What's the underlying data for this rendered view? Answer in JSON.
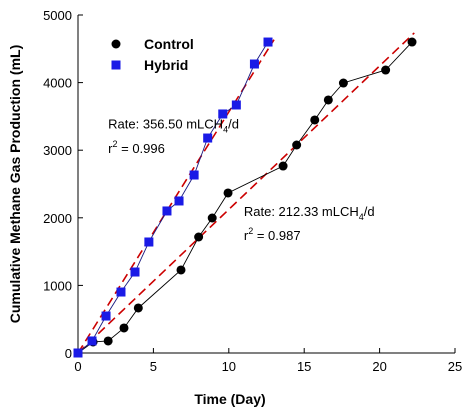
{
  "chart_data": {
    "type": "scatter",
    "x_label": "Time (Day)",
    "y_label": "Cumulative Methane Gas Production (mL)",
    "xlim": [
      0,
      25
    ],
    "xticks": [
      0,
      5,
      10,
      15,
      20,
      25
    ],
    "ylim": [
      0,
      5000
    ],
    "yticks": [
      0,
      1000,
      2000,
      3000,
      4000,
      5000
    ],
    "legend": "upper left",
    "series": [
      {
        "name": "Control",
        "color": "#000000",
        "marker": "circle",
        "line_color": "#000000",
        "x": [
          0,
          1.0,
          2.0,
          3.05,
          4.0,
          6.83,
          8.0,
          8.9,
          9.95,
          13.6,
          14.5,
          15.7,
          16.6,
          17.6,
          20.4,
          22.15
        ],
        "values": [
          0,
          163,
          178,
          370,
          666,
          1228,
          1716,
          1997,
          2367,
          2766,
          3077,
          3447,
          3743,
          3994,
          4186,
          4600
        ]
      },
      {
        "name": "Hybrid",
        "color": "#1a1ae6",
        "marker": "square",
        "line_color": "#1a1a80",
        "x": [
          0,
          0.93,
          1.86,
          2.85,
          3.78,
          4.7,
          5.9,
          6.7,
          7.7,
          8.6,
          9.6,
          10.5,
          11.7,
          12.6
        ],
        "values": [
          0,
          178,
          547,
          902,
          1198,
          1642,
          2101,
          2249,
          2633,
          3180,
          3536,
          3669,
          4275,
          4600
        ]
      }
    ],
    "trendlines": [
      {
        "color": "#cc0000",
        "x": [
          0,
          13
        ],
        "values": [
          0,
          4635
        ]
      },
      {
        "color": "#cc0000",
        "x": [
          0,
          22.3
        ],
        "values": [
          0,
          4735
        ]
      }
    ],
    "annotations": [
      {
        "text": "Rate: 356.50  mLCH",
        "sub": "4",
        "tail": "/d",
        "x": 2,
        "y": 3320
      },
      {
        "text": "r",
        "sup": "2",
        "tail": " = 0.996",
        "x": 2,
        "y": 2960
      },
      {
        "text": "Rate: 212.33  mLCH",
        "sub": "4",
        "tail": "/d",
        "x": 11,
        "y": 2030
      },
      {
        "text": "r",
        "sup": "2",
        "tail": " = 0.987",
        "x": 11,
        "y": 1670
      }
    ]
  }
}
